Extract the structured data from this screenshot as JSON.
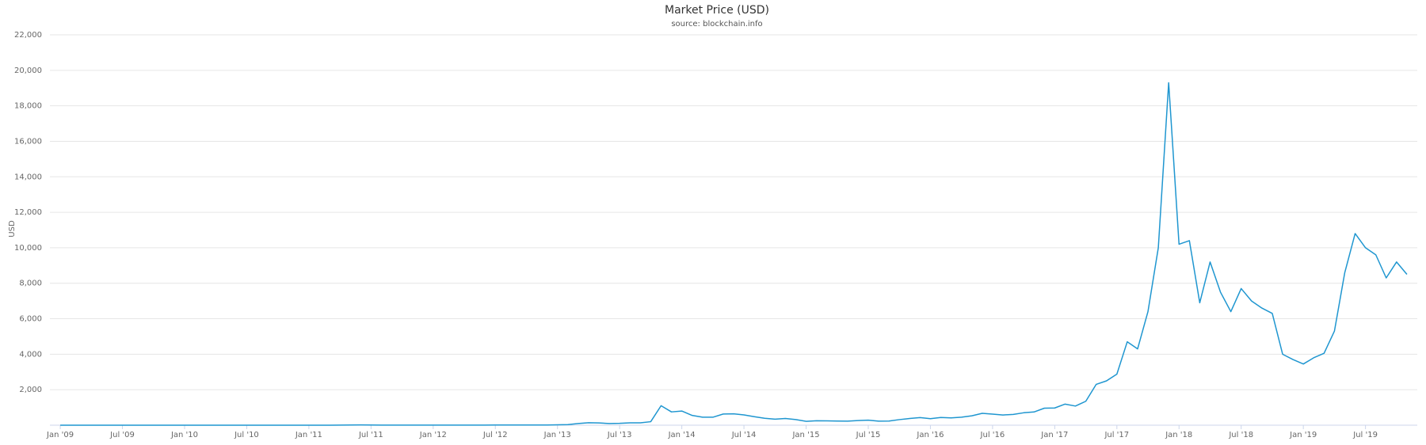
{
  "chart_data": {
    "type": "line",
    "title": "Market Price (USD)",
    "subtitle": "source: blockchain.info",
    "y_label": "USD",
    "x": [
      "2009-01",
      "2009-02",
      "2009-03",
      "2009-04",
      "2009-05",
      "2009-06",
      "2009-07",
      "2009-08",
      "2009-09",
      "2009-10",
      "2009-11",
      "2009-12",
      "2010-01",
      "2010-02",
      "2010-03",
      "2010-04",
      "2010-05",
      "2010-06",
      "2010-07",
      "2010-08",
      "2010-09",
      "2010-10",
      "2010-11",
      "2010-12",
      "2011-01",
      "2011-02",
      "2011-03",
      "2011-04",
      "2011-05",
      "2011-06",
      "2011-07",
      "2011-08",
      "2011-09",
      "2011-10",
      "2011-11",
      "2011-12",
      "2012-01",
      "2012-02",
      "2012-03",
      "2012-04",
      "2012-05",
      "2012-06",
      "2012-07",
      "2012-08",
      "2012-09",
      "2012-10",
      "2012-11",
      "2012-12",
      "2013-01",
      "2013-02",
      "2013-03",
      "2013-04",
      "2013-05",
      "2013-06",
      "2013-07",
      "2013-08",
      "2013-09",
      "2013-10",
      "2013-11",
      "2013-12",
      "2014-01",
      "2014-02",
      "2014-03",
      "2014-04",
      "2014-05",
      "2014-06",
      "2014-07",
      "2014-08",
      "2014-09",
      "2014-10",
      "2014-11",
      "2014-12",
      "2015-01",
      "2015-02",
      "2015-03",
      "2015-04",
      "2015-05",
      "2015-06",
      "2015-07",
      "2015-08",
      "2015-09",
      "2015-10",
      "2015-11",
      "2015-12",
      "2016-01",
      "2016-02",
      "2016-03",
      "2016-04",
      "2016-05",
      "2016-06",
      "2016-07",
      "2016-08",
      "2016-09",
      "2016-10",
      "2016-11",
      "2016-12",
      "2017-01",
      "2017-02",
      "2017-03",
      "2017-04",
      "2017-05",
      "2017-06",
      "2017-07",
      "2017-08",
      "2017-09",
      "2017-10",
      "2017-11",
      "2017-12",
      "2018-01",
      "2018-02",
      "2018-03",
      "2018-04",
      "2018-05",
      "2018-06",
      "2018-07",
      "2018-08",
      "2018-09",
      "2018-10",
      "2018-11",
      "2018-12",
      "2019-01",
      "2019-02",
      "2019-03",
      "2019-04",
      "2019-05",
      "2019-06",
      "2019-07",
      "2019-08",
      "2019-09",
      "2019-10",
      "2019-11"
    ],
    "series": [
      {
        "name": "Market Price",
        "color": "#1f96d0",
        "values": [
          0,
          0,
          0,
          0,
          0,
          0,
          0,
          0,
          0,
          0,
          0,
          0,
          0,
          0,
          0,
          0,
          0,
          0,
          0.07,
          0.06,
          0.06,
          0.19,
          0.28,
          0.3,
          0.4,
          0.9,
          0.9,
          3.5,
          8.7,
          16,
          13.4,
          8.2,
          4.8,
          3.2,
          3,
          4.2,
          5.5,
          4.9,
          4.9,
          5,
          5.2,
          6.7,
          9.3,
          10,
          12.4,
          11.2,
          12.6,
          13.5,
          20,
          33,
          93,
          139,
          129,
          97,
          106,
          135,
          133,
          198,
          1100,
          750,
          800,
          550,
          450,
          450,
          630,
          640,
          580,
          480,
          390,
          340,
          380,
          320,
          220,
          250,
          245,
          235,
          230,
          260,
          285,
          230,
          236,
          315,
          380,
          430,
          370,
          435,
          415,
          450,
          530,
          670,
          625,
          575,
          610,
          700,
          745,
          960,
          970,
          1190,
          1080,
          1350,
          2300,
          2500,
          2880,
          4700,
          4300,
          6400,
          10000,
          19300,
          10200,
          10400,
          6900,
          9200,
          7500,
          6400,
          7700,
          7000,
          6600,
          6300,
          4000,
          3700,
          3450,
          3800,
          4050,
          5300,
          8600,
          10800,
          10000,
          9600,
          8300,
          9200,
          8500
        ]
      }
    ],
    "xlim": [
      "2008-12",
      "2019-12"
    ],
    "xticks": [
      {
        "value": "2009-01",
        "label": "Jan '09"
      },
      {
        "value": "2009-07",
        "label": "Jul '09"
      },
      {
        "value": "2010-01",
        "label": "Jan '10"
      },
      {
        "value": "2010-07",
        "label": "Jul '10"
      },
      {
        "value": "2011-01",
        "label": "Jan '11"
      },
      {
        "value": "2011-07",
        "label": "Jul '11"
      },
      {
        "value": "2012-01",
        "label": "Jan '12"
      },
      {
        "value": "2012-07",
        "label": "Jul '12"
      },
      {
        "value": "2013-01",
        "label": "Jan '13"
      },
      {
        "value": "2013-07",
        "label": "Jul '13"
      },
      {
        "value": "2014-01",
        "label": "Jan '14"
      },
      {
        "value": "2014-07",
        "label": "Jul '14"
      },
      {
        "value": "2015-01",
        "label": "Jan '15"
      },
      {
        "value": "2015-07",
        "label": "Jul '15"
      },
      {
        "value": "2016-01",
        "label": "Jan '16"
      },
      {
        "value": "2016-07",
        "label": "Jul '16"
      },
      {
        "value": "2017-01",
        "label": "Jan '17"
      },
      {
        "value": "2017-07",
        "label": "Jul '17"
      },
      {
        "value": "2018-01",
        "label": "Jan '18"
      },
      {
        "value": "2018-07",
        "label": "Jul '18"
      },
      {
        "value": "2019-01",
        "label": "Jan '19"
      },
      {
        "value": "2019-07",
        "label": "Jul '19"
      }
    ],
    "ylim": [
      0,
      22000
    ],
    "yticks": [
      {
        "value": 2000,
        "label": "2,000"
      },
      {
        "value": 4000,
        "label": "4,000"
      },
      {
        "value": 6000,
        "label": "6,000"
      },
      {
        "value": 8000,
        "label": "8,000"
      },
      {
        "value": 10000,
        "label": "10,000"
      },
      {
        "value": 12000,
        "label": "12,000"
      },
      {
        "value": 14000,
        "label": "14,000"
      },
      {
        "value": 16000,
        "label": "16,000"
      },
      {
        "value": 18000,
        "label": "18,000"
      },
      {
        "value": 20000,
        "label": "20,000"
      },
      {
        "value": 22000,
        "label": "22,000"
      }
    ],
    "grid": true
  }
}
